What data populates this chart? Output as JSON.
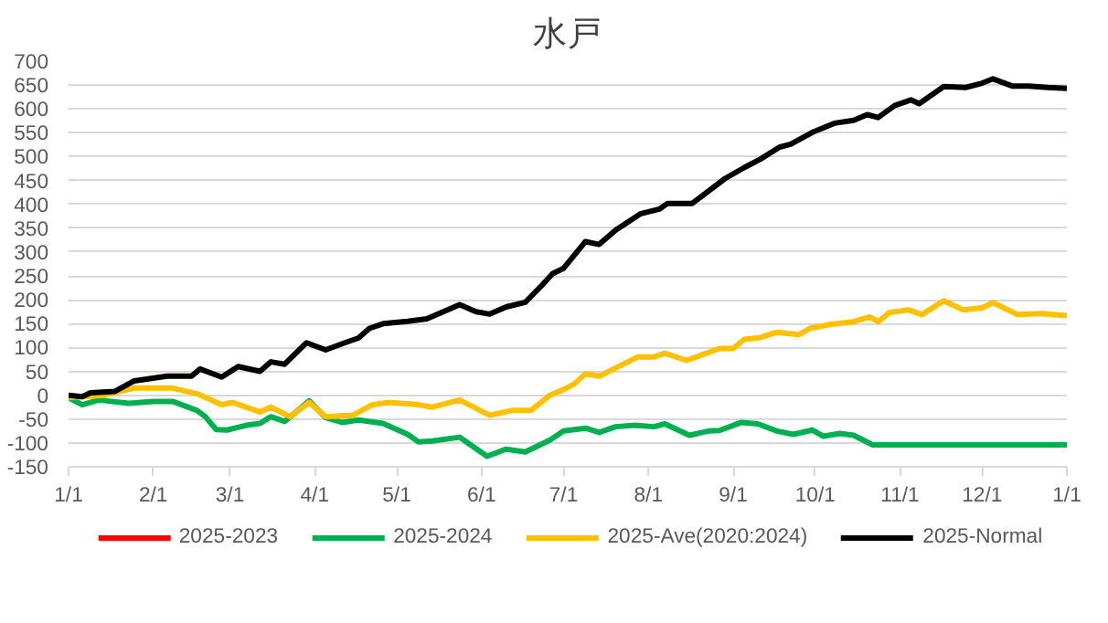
{
  "chart_data": {
    "type": "line",
    "title": "水戸",
    "xlim": [
      "2025-01-01",
      "2026-01-01"
    ],
    "xticks": [
      {
        "value": "2025-01-01",
        "label": "1/1"
      },
      {
        "value": "2025-02-01",
        "label": "2/1"
      },
      {
        "value": "2025-03-01",
        "label": "3/1"
      },
      {
        "value": "2025-04-01",
        "label": "4/1"
      },
      {
        "value": "2025-05-01",
        "label": "5/1"
      },
      {
        "value": "2025-06-01",
        "label": "6/1"
      },
      {
        "value": "2025-07-01",
        "label": "7/1"
      },
      {
        "value": "2025-08-01",
        "label": "8/1"
      },
      {
        "value": "2025-09-01",
        "label": "9/1"
      },
      {
        "value": "2025-10-01",
        "label": "10/1"
      },
      {
        "value": "2025-11-01",
        "label": "11/1"
      },
      {
        "value": "2025-12-01",
        "label": "12/1"
      },
      {
        "value": "2026-01-01",
        "label": "1/1"
      }
    ],
    "ylim": [
      -150,
      700
    ],
    "yticks": [
      -150,
      -100,
      -50,
      0,
      50,
      100,
      150,
      200,
      250,
      300,
      350,
      400,
      450,
      500,
      550,
      600,
      650,
      700
    ],
    "grid": "y",
    "legend": "bottom",
    "marker": "none",
    "line_style": "solid",
    "series": [
      {
        "name": "2025-2023",
        "color": "#ff0000"
      },
      {
        "name": "2025-2024",
        "color": "#00b050",
        "x": [
          "2025-01-01",
          "2025-01-06",
          "2025-01-12",
          "2025-01-23",
          "2025-02-01",
          "2025-02-08",
          "2025-02-17",
          "2025-02-20",
          "2025-02-24",
          "2025-02-28",
          "2025-03-07",
          "2025-03-12",
          "2025-03-16",
          "2025-03-21",
          "2025-03-30",
          "2025-04-05",
          "2025-04-11",
          "2025-04-17",
          "2025-04-26",
          "2025-05-05",
          "2025-05-09",
          "2025-05-14",
          "2025-05-24",
          "2025-06-03",
          "2025-06-10",
          "2025-06-17",
          "2025-06-26",
          "2025-07-01",
          "2025-07-09",
          "2025-07-14",
          "2025-07-20",
          "2025-07-27",
          "2025-08-03",
          "2025-08-07",
          "2025-08-16",
          "2025-08-23",
          "2025-08-27",
          "2025-09-04",
          "2025-09-10",
          "2025-09-17",
          "2025-09-23",
          "2025-09-30",
          "2025-10-04",
          "2025-10-10",
          "2025-10-15",
          "2025-10-22",
          "2026-01-01"
        ],
        "values": [
          -5,
          -20,
          -10,
          -17,
          -13,
          -13,
          -32,
          -45,
          -72,
          -73,
          -63,
          -59,
          -45,
          -55,
          -12,
          -47,
          -57,
          -52,
          -59,
          -82,
          -98,
          -96,
          -88,
          -128,
          -113,
          -119,
          -94,
          -75,
          -69,
          -78,
          -66,
          -63,
          -66,
          -60,
          -84,
          -75,
          -74,
          -57,
          -60,
          -75,
          -82,
          -73,
          -86,
          -80,
          -84,
          -104,
          -104
        ]
      },
      {
        "name": "2025-Ave(2020:2024)",
        "color": "#ffc000",
        "x": [
          "2025-01-01",
          "2025-01-14",
          "2025-01-25",
          "2025-02-08",
          "2025-02-17",
          "2025-02-26",
          "2025-03-02",
          "2025-03-12",
          "2025-03-16",
          "2025-03-23",
          "2025-03-30",
          "2025-04-05",
          "2025-04-15",
          "2025-04-22",
          "2025-04-28",
          "2025-05-09",
          "2025-05-14",
          "2025-05-24",
          "2025-06-04",
          "2025-06-12",
          "2025-06-19",
          "2025-06-26",
          "2025-07-01",
          "2025-07-05",
          "2025-07-09",
          "2025-07-14",
          "2025-07-20",
          "2025-07-28",
          "2025-08-03",
          "2025-08-07",
          "2025-08-15",
          "2025-08-27",
          "2025-09-01",
          "2025-09-05",
          "2025-09-11",
          "2025-09-17",
          "2025-09-25",
          "2025-09-29",
          "2025-10-06",
          "2025-10-15",
          "2025-10-21",
          "2025-10-24",
          "2025-10-28",
          "2025-11-04",
          "2025-11-09",
          "2025-11-17",
          "2025-11-24",
          "2025-12-01",
          "2025-12-05",
          "2025-12-14",
          "2025-12-23",
          "2026-01-01"
        ],
        "values": [
          -5,
          0,
          15,
          15,
          3,
          -20,
          -15,
          -35,
          -25,
          -45,
          -15,
          -45,
          -42,
          -20,
          -15,
          -20,
          -25,
          -10,
          -42,
          -32,
          -32,
          0,
          12,
          24,
          45,
          40,
          57,
          80,
          80,
          88,
          73,
          98,
          98,
          117,
          121,
          132,
          127,
          140,
          148,
          154,
          164,
          154,
          173,
          179,
          169,
          198,
          179,
          183,
          194,
          169,
          171,
          167
        ]
      },
      {
        "name": "2025-Normal",
        "color": "#000000",
        "x": [
          "2025-01-01",
          "2025-01-06",
          "2025-01-09",
          "2025-01-18",
          "2025-01-25",
          "2025-02-06",
          "2025-02-15",
          "2025-02-18",
          "2025-02-26",
          "2025-03-04",
          "2025-03-12",
          "2025-03-16",
          "2025-03-21",
          "2025-03-29",
          "2025-04-05",
          "2025-04-12",
          "2025-04-17",
          "2025-04-21",
          "2025-04-26",
          "2025-05-05",
          "2025-05-12",
          "2025-05-18",
          "2025-05-24",
          "2025-05-30",
          "2025-06-04",
          "2025-06-10",
          "2025-06-17",
          "2025-06-23",
          "2025-06-27",
          "2025-07-01",
          "2025-07-09",
          "2025-07-14",
          "2025-07-20",
          "2025-07-29",
          "2025-08-05",
          "2025-08-08",
          "2025-08-17",
          "2025-08-29",
          "2025-09-05",
          "2025-09-11",
          "2025-09-18",
          "2025-09-22",
          "2025-09-30",
          "2025-10-08",
          "2025-10-15",
          "2025-10-20",
          "2025-10-24",
          "2025-10-30",
          "2025-11-05",
          "2025-11-08",
          "2025-11-17",
          "2025-11-25",
          "2025-12-01",
          "2025-12-05",
          "2025-12-12",
          "2025-12-18",
          "2025-12-25",
          "2026-01-01"
        ],
        "values": [
          0,
          -3,
          5,
          8,
          30,
          40,
          40,
          55,
          38,
          60,
          50,
          70,
          65,
          110,
          95,
          110,
          120,
          140,
          150,
          155,
          160,
          175,
          190,
          175,
          170,
          185,
          195,
          230,
          255,
          266,
          322,
          316,
          346,
          380,
          390,
          402,
          402,
          454,
          477,
          495,
          520,
          526,
          551,
          570,
          576,
          588,
          582,
          607,
          619,
          611,
          647,
          645,
          654,
          663,
          648,
          648,
          645,
          643
        ]
      }
    ]
  }
}
